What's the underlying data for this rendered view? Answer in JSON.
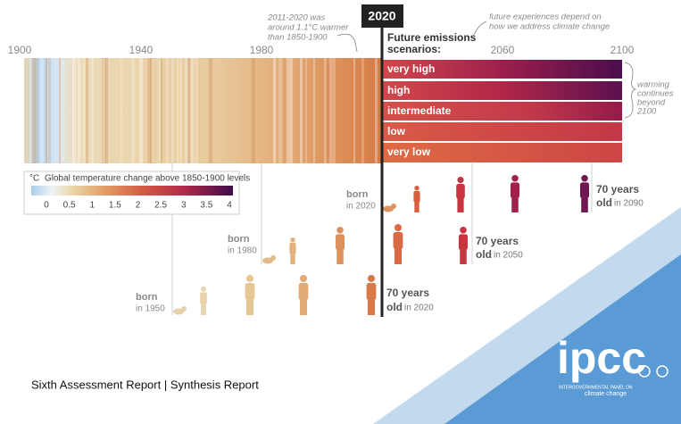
{
  "timeline": {
    "years": [
      "1900",
      "1940",
      "1980",
      "2020",
      "2060",
      "2100"
    ]
  },
  "annotations": {
    "past": [
      "2011-2020 was",
      "around 1.1°C warmer",
      "than 1850-1900"
    ],
    "future": [
      "future experiences depend on",
      "how we address climate change"
    ],
    "beyond": [
      "warming",
      "continues",
      "beyond",
      "2100"
    ]
  },
  "scenarios": {
    "title": [
      "Future emissions",
      "scenarios:"
    ],
    "labels": [
      "very high",
      "high",
      "intermediate",
      "low",
      "very low"
    ]
  },
  "legend": {
    "unit": "°C",
    "title": "Global temperature change above 1850-1900 levels",
    "ticks": [
      0,
      0.5,
      1,
      1.5,
      2,
      2.5,
      3,
      3.5,
      4
    ]
  },
  "generations": [
    {
      "born": "born",
      "born_year": "in 2020",
      "age": "70 years",
      "old": "old",
      "old_year": "in 2090"
    },
    {
      "born": "born",
      "born_year": "in 1980",
      "age": "70 years",
      "old": "old",
      "old_year": "in 2050"
    },
    {
      "born": "born",
      "born_year": "in 1950",
      "age": "70 years",
      "old": "old",
      "old_year": "in 2020"
    }
  ],
  "footer": "Sixth Assessment Report | Synthesis Report",
  "logo": {
    "name": "ipcc",
    "line1": "INTERGOVERNMENTAL PANEL ON",
    "line2": "climate change"
  }
}
